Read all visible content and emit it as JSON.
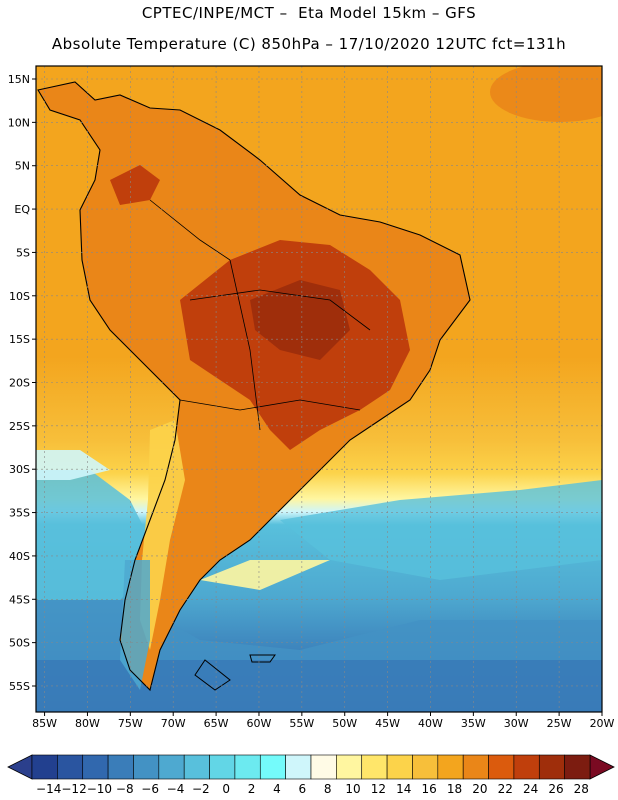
{
  "header": {
    "line1": "CPTEC/INPE/MCT –  Eta Model 15km – GFS",
    "line2": "Absolute Temperature (C) 850hPa – 17/10/2020 12UTC fct=131h"
  },
  "map": {
    "lat_ticks": [
      "15N",
      "10N",
      "5N",
      "EQ",
      "5S",
      "10S",
      "15S",
      "20S",
      "25S",
      "30S",
      "35S",
      "40S",
      "45S",
      "50S",
      "55S"
    ],
    "lon_ticks": [
      "85W",
      "80W",
      "75W",
      "70W",
      "65W",
      "60W",
      "55W",
      "50W",
      "45W",
      "40W",
      "35W",
      "30W",
      "25W",
      "20W"
    ],
    "lat_range": [
      -58,
      16.5
    ],
    "lon_range": [
      -86,
      -20
    ],
    "gridlines": true,
    "coastline_color": "#000000"
  },
  "colorbar": {
    "labels": [
      "-14",
      "-12",
      "-10",
      "-8",
      "-6",
      "-4",
      "-2",
      "0",
      "2",
      "4",
      "6",
      "8",
      "10",
      "12",
      "14",
      "16",
      "18",
      "20",
      "22",
      "24",
      "26",
      "28"
    ],
    "under_color": "#2b3f8c",
    "over_color": "#7a0a22",
    "colors": [
      "#22408f",
      "#2a55a0",
      "#3168ae",
      "#3a7db9",
      "#4392c4",
      "#4ea9d0",
      "#58c0dc",
      "#62d6e6",
      "#6ceaf0",
      "#74fbfb",
      "#cff6fb",
      "#fffbe6",
      "#fff6a0",
      "#ffe66a",
      "#fcd34a",
      "#f7bf3a",
      "#f3a51e",
      "#ea8618",
      "#db5b0d",
      "#c03f0c",
      "#9f2e0b",
      "#7c1c10"
    ]
  }
}
